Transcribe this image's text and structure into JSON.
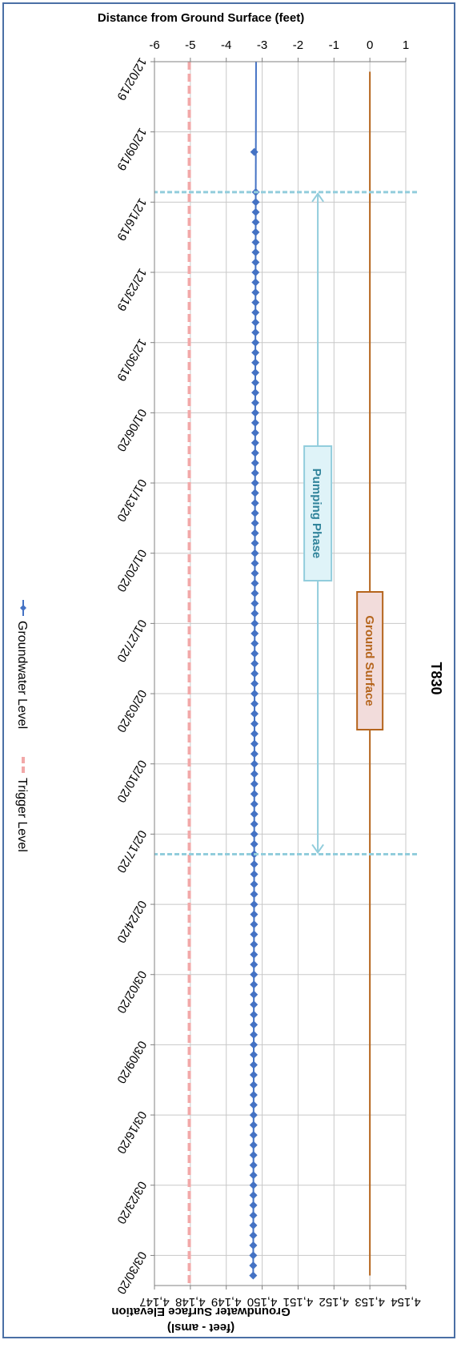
{
  "chart_data": {
    "type": "line",
    "title": "T830",
    "xlabel": "",
    "ylabel": "Distance from Ground Surface (feet)",
    "y2label_line1": "Groundwater Surface Elevation",
    "y2label_line2": "(feet - amsl)",
    "ylim": [
      -6,
      1
    ],
    "y2lim": [
      4147,
      4154
    ],
    "yticks": [
      "1",
      "0",
      "-1",
      "-2",
      "-3",
      "-4",
      "-5",
      "-6"
    ],
    "y2ticks": [
      "4,154",
      "4,153",
      "4,152",
      "4,151",
      "4,150",
      "4,149",
      "4,148",
      "4,147"
    ],
    "x_tick_labels": [
      "12/02/19",
      "12/09/19",
      "12/16/19",
      "12/23/19",
      "12/30/19",
      "01/06/20",
      "01/13/20",
      "01/20/20",
      "01/27/20",
      "02/03/20",
      "02/10/20",
      "02/17/20",
      "02/24/20",
      "03/02/20",
      "03/09/20",
      "03/16/20",
      "03/23/20",
      "03/30/20"
    ],
    "x_start": "2019-12-02",
    "x_end": "2020-04-02",
    "grid": true,
    "legend_position": "bottom",
    "series": [
      {
        "name": "Groundwater Level",
        "color": "#4472c4",
        "marker": "diamond",
        "start": "2019-12-02",
        "end": "2020-04-01",
        "start_value": -3.17,
        "end_value": -3.25,
        "marker_points": [
          {
            "date": "2019-12-11",
            "value": -3.22
          }
        ],
        "marker_daily_from": "2019-12-15",
        "marker_daily_to": "2020-04-01"
      },
      {
        "name": "Trigger Level",
        "color": "#f2a8a8",
        "dash": true,
        "start": "2019-12-02",
        "end": "2020-04-02",
        "value": -5.03
      }
    ],
    "ground_surface": {
      "label": "Ground Surface",
      "value": 0,
      "color": "#b5651d",
      "start": "2019-12-03",
      "end": "2020-04-01"
    },
    "pumping_phase": {
      "label": "Pumping Phase",
      "start": "2019-12-15",
      "end": "2020-02-19",
      "arrow_value": -1.45,
      "color": "#92cddc"
    }
  }
}
